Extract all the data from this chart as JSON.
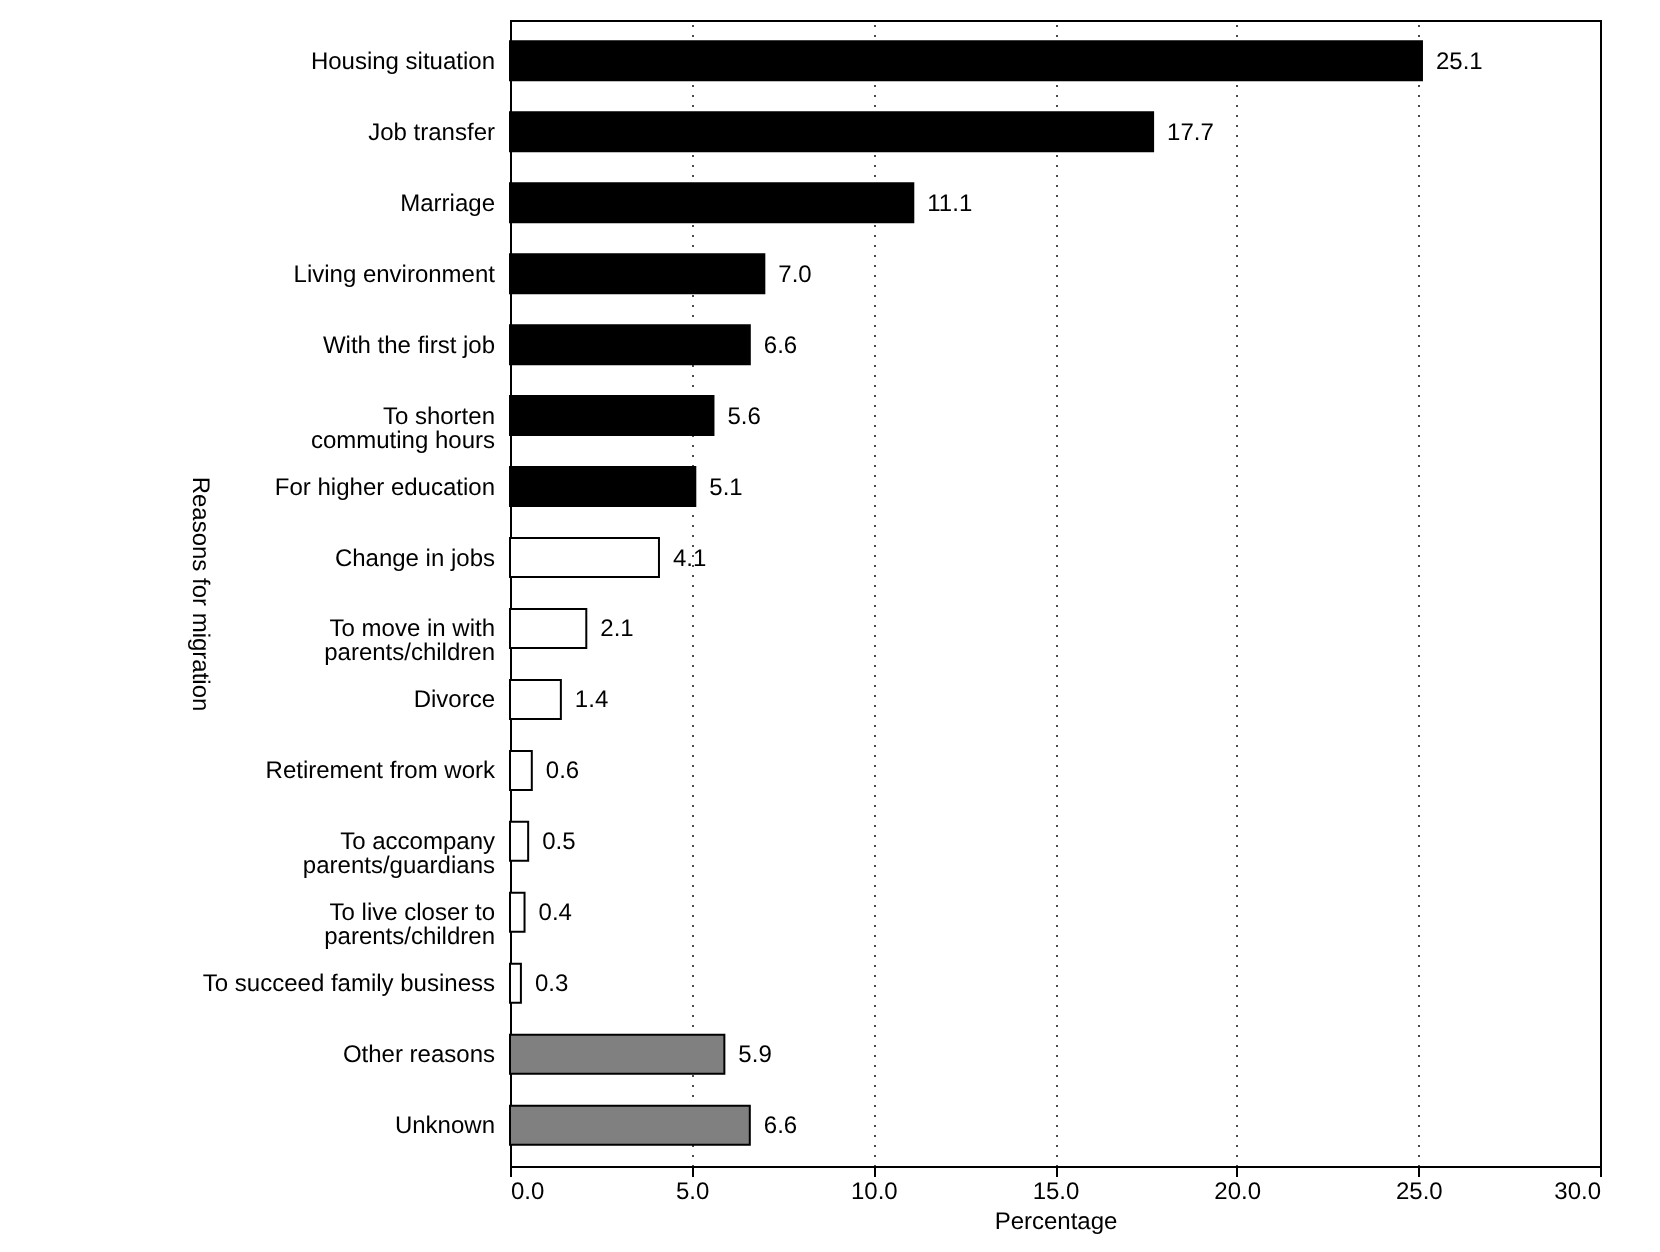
{
  "chart_data": {
    "type": "bar",
    "orientation": "horizontal",
    "xlabel": "Percentage",
    "ylabel": "Reasons for migration",
    "categories": [
      "Housing situation",
      "Job transfer",
      "Marriage",
      "Living environment",
      "With the first job",
      "To shorten\ncommuting hours",
      "For higher education",
      "Change in jobs",
      "To move in with\nparents/children",
      "Divorce",
      "Retirement from work",
      "To accompany\nparents/guardians",
      "To live closer to\nparents/children",
      "To succeed family business",
      "Other reasons",
      "Unknown"
    ],
    "values": [
      25.1,
      17.7,
      11.1,
      7.0,
      6.6,
      5.6,
      5.1,
      4.1,
      2.1,
      1.4,
      0.6,
      0.5,
      0.4,
      0.3,
      5.9,
      6.6
    ],
    "value_labels": [
      "25.1",
      "17.7",
      "11.1",
      "7.0",
      "6.6",
      "5.6",
      "5.1",
      "4.1",
      "2.1",
      "1.4",
      "0.6",
      "0.5",
      "0.4",
      "0.3",
      "5.9",
      "6.6"
    ],
    "colors": [
      "#000000",
      "#000000",
      "#000000",
      "#000000",
      "#000000",
      "#000000",
      "#000000",
      "#ffffff",
      "#ffffff",
      "#ffffff",
      "#ffffff",
      "#ffffff",
      "#ffffff",
      "#ffffff",
      "#808080",
      "#808080"
    ],
    "xlim": [
      0,
      30
    ],
    "xticks": [
      {
        "value": 0,
        "label": "0.0"
      },
      {
        "value": 5,
        "label": "5.0"
      },
      {
        "value": 10,
        "label": "10.0"
      },
      {
        "value": 15,
        "label": "15.0"
      },
      {
        "value": 20,
        "label": "20.0"
      },
      {
        "value": 25,
        "label": "25.0"
      },
      {
        "value": 30,
        "label": "30.0"
      }
    ],
    "grid": "x"
  }
}
